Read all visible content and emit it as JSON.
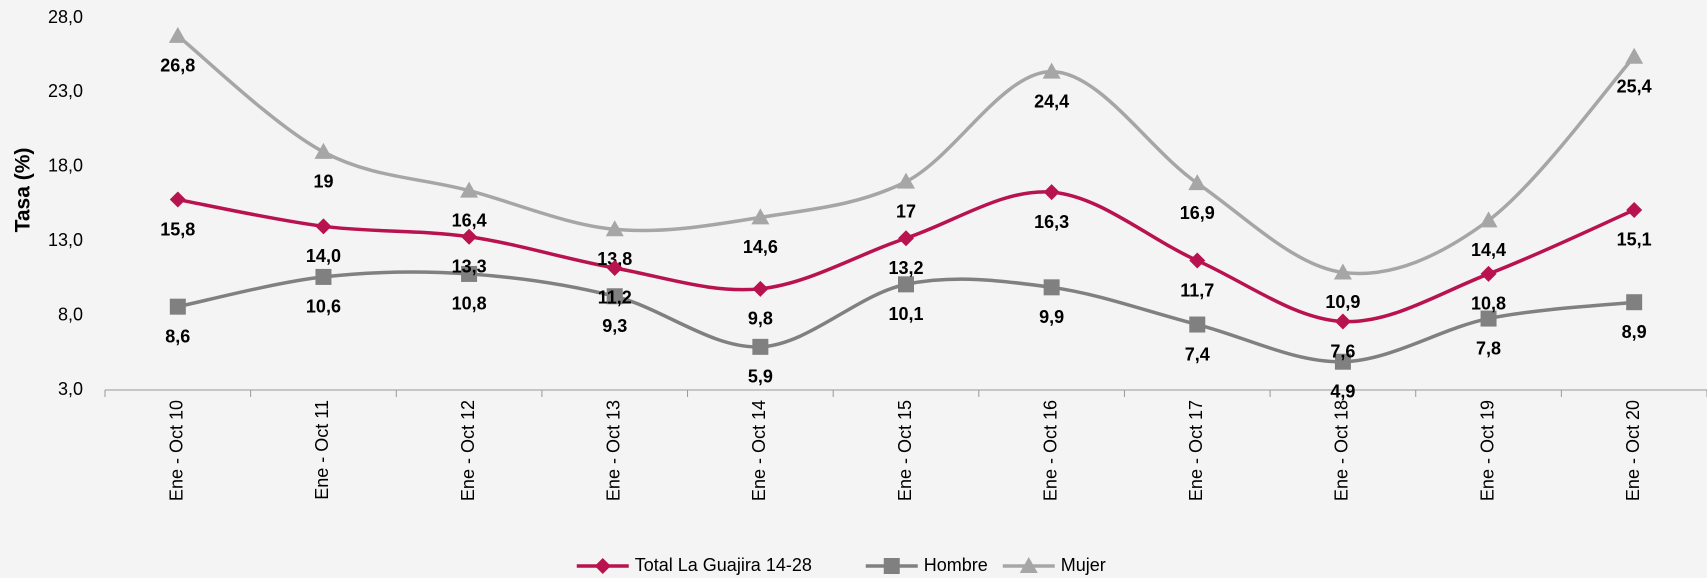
{
  "chart_data": {
    "type": "line",
    "y_label": "Tasa (%)",
    "categories": [
      "Ene - Oct 10",
      "Ene - Oct 11",
      "Ene - Oct 12",
      "Ene - Oct 13",
      "Ene - Oct 14",
      "Ene - Oct 15",
      "Ene - Oct 16",
      "Ene - Oct 17",
      "Ene - Oct 18",
      "Ene - Oct 19",
      "Ene - Oct 20"
    ],
    "series": [
      {
        "name": "Total La Guajira 14-28",
        "color": "#b8124f",
        "marker": "diamond",
        "values": [
          15.8,
          14.0,
          13.3,
          11.2,
          9.8,
          13.2,
          16.3,
          11.7,
          7.6,
          10.8,
          15.1
        ],
        "value_labels": [
          "15,8",
          "14,0",
          "13,3",
          "11,2",
          "9,8",
          "13,2",
          "16,3",
          "11,7",
          "7,6",
          "10,8",
          "15,1"
        ]
      },
      {
        "name": "Hombre",
        "color": "#808080",
        "marker": "square",
        "values": [
          8.6,
          10.6,
          10.8,
          9.3,
          5.9,
          10.1,
          9.9,
          7.4,
          4.9,
          7.8,
          8.9
        ],
        "value_labels": [
          "8,6",
          "10,6",
          "10,8",
          "9,3",
          "5,9",
          "10,1",
          "9,9",
          "7,4",
          "4,9",
          "7,8",
          "8,9"
        ]
      },
      {
        "name": "Mujer",
        "color": "#a6a6a6",
        "marker": "triangle",
        "values": [
          26.8,
          19,
          16.4,
          13.8,
          14.6,
          17,
          24.4,
          16.9,
          10.9,
          14.4,
          25.4
        ],
        "value_labels": [
          "26,8",
          "19",
          "16,4",
          "13,8",
          "14,6",
          "17",
          "24,4",
          "16,9",
          "10,9",
          "14,4",
          "25,4"
        ]
      }
    ],
    "ylim": [
      3,
      28
    ],
    "yticks": [
      {
        "value": 3,
        "label": "3,0"
      },
      {
        "value": 8,
        "label": "8,0"
      },
      {
        "value": 13,
        "label": "13,0"
      },
      {
        "value": 18,
        "label": "18,0"
      },
      {
        "value": 23,
        "label": "23,0"
      },
      {
        "value": 28,
        "label": "28,0"
      }
    ],
    "smooth": true,
    "grid": false,
    "legend": "bottom"
  }
}
